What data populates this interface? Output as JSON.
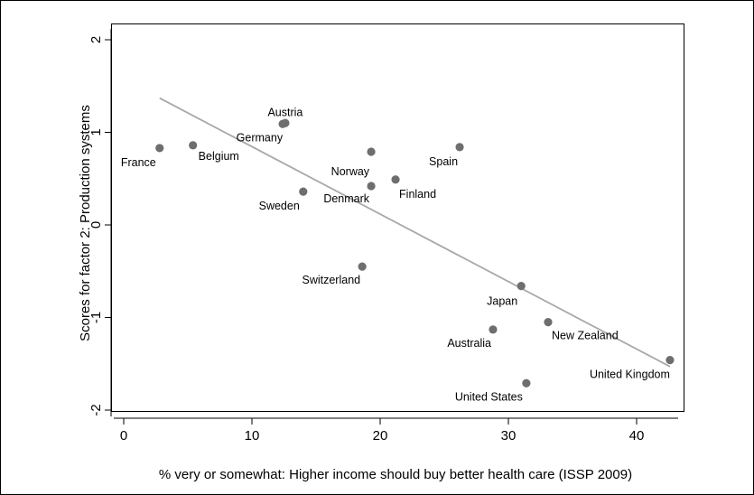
{
  "chart_data": {
    "type": "scatter",
    "xlabel": "% very or somewhat: Higher income should buy better health care (ISSP 2009)",
    "ylabel": "Scores for factor 2: Production systems",
    "xlim": [
      -1,
      44
    ],
    "ylim": [
      -2.1,
      2.1
    ],
    "x_ticks": [
      0,
      10,
      20,
      30,
      40
    ],
    "y_ticks": [
      -2,
      -1,
      0,
      1,
      2
    ],
    "x_tick_labels": [
      "0",
      "10",
      "20",
      "30",
      "40"
    ],
    "y_tick_labels": [
      "-2",
      "-1",
      "0",
      "1",
      "2"
    ],
    "grid": false,
    "legend": "none",
    "points": [
      {
        "label": "France",
        "x": 2.8,
        "y": 0.83
      },
      {
        "label": "Belgium",
        "x": 5.4,
        "y": 0.86
      },
      {
        "label": "Austria",
        "x": 12.6,
        "y": 1.1
      },
      {
        "label": "Germany",
        "x": 12.4,
        "y": 1.09
      },
      {
        "label": "Sweden",
        "x": 14.0,
        "y": 0.36
      },
      {
        "label": "Switzerland",
        "x": 18.6,
        "y": -0.45
      },
      {
        "label": "Norway",
        "x": 19.3,
        "y": 0.79
      },
      {
        "label": "Denmark",
        "x": 19.3,
        "y": 0.42
      },
      {
        "label": "Finland",
        "x": 21.2,
        "y": 0.49
      },
      {
        "label": "Spain",
        "x": 26.2,
        "y": 0.84
      },
      {
        "label": "Australia",
        "x": 28.8,
        "y": -1.13
      },
      {
        "label": "Japan",
        "x": 31.0,
        "y": -0.66
      },
      {
        "label": "United States",
        "x": 31.4,
        "y": -1.71
      },
      {
        "label": "New Zealand",
        "x": 33.1,
        "y": -1.05
      },
      {
        "label": "United Kingdom",
        "x": 42.6,
        "y": -1.46
      }
    ],
    "fit_line": {
      "x": [
        2.8,
        42.6
      ],
      "y": [
        1.37,
        -1.53
      ]
    },
    "colors": {
      "points": "#6e6e6e",
      "fit_line": "#a8a8a8",
      "axes": "#000000"
    }
  }
}
